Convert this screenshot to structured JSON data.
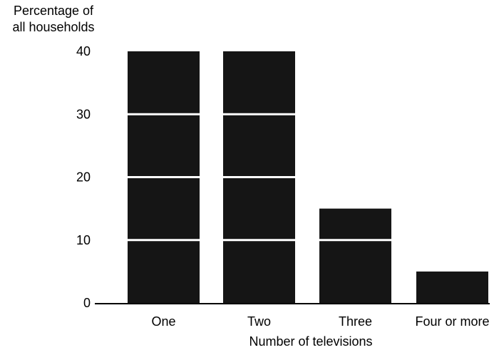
{
  "chart_data": {
    "type": "bar",
    "ylabel_lines": [
      "Percentage of",
      "all households"
    ],
    "xlabel": "Number of televisions",
    "categories": [
      "One",
      "Two",
      "Three",
      "Four or more"
    ],
    "values": [
      40,
      40,
      15,
      5
    ],
    "yticks": [
      "40",
      "30",
      "20",
      "10",
      "0"
    ],
    "ylim": [
      0,
      40
    ],
    "grid": "white lines across bars",
    "bar_color": "#151515",
    "gridline_color": "#ffffff"
  }
}
